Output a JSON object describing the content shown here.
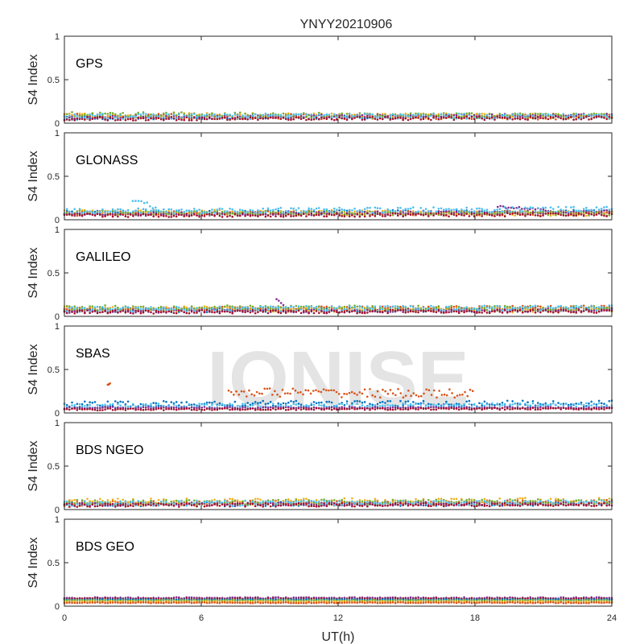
{
  "title": "YNYY20210906",
  "watermark": "IONISE",
  "chart_data": [
    {
      "type": "scatter",
      "panel_label": "GPS",
      "ylabel": "S4 Index",
      "xlim": [
        0,
        24
      ],
      "ylim": [
        0,
        1
      ],
      "yticks": [
        {
          "value": 0,
          "label": "0"
        },
        {
          "value": 0.5,
          "label": "0.5"
        },
        {
          "value": 1,
          "label": "1"
        }
      ],
      "series": [
        {
          "color": "#0072BD",
          "segments": [
            {
              "x": [
                0,
                24
              ],
              "y": [
                0.06,
                0.08
              ],
              "noise": 0.02
            }
          ]
        },
        {
          "color": "#D95319",
          "segments": [
            {
              "x": [
                0,
                24
              ],
              "y": [
                0.08,
                0.07
              ],
              "noise": 0.03
            }
          ]
        },
        {
          "color": "#EDB120",
          "segments": [
            {
              "x": [
                0,
                24
              ],
              "y": [
                0.09,
                0.08
              ],
              "noise": 0.03
            }
          ]
        },
        {
          "color": "#7E2F8E",
          "segments": [
            {
              "x": [
                0,
                24
              ],
              "y": [
                0.07,
                0.09
              ],
              "noise": 0.02
            }
          ]
        },
        {
          "color": "#77AC30",
          "segments": [
            {
              "x": [
                0,
                24
              ],
              "y": [
                0.1,
                0.08
              ],
              "noise": 0.03
            }
          ]
        },
        {
          "color": "#4DBEEE",
          "segments": [
            {
              "x": [
                0,
                24
              ],
              "y": [
                0.08,
                0.08
              ],
              "noise": 0.03
            }
          ]
        },
        {
          "color": "#A2142F",
          "segments": [
            {
              "x": [
                0,
                24
              ],
              "y": [
                0.05,
                0.06
              ],
              "noise": 0.02
            }
          ]
        }
      ]
    },
    {
      "type": "scatter",
      "panel_label": "GLONASS",
      "ylabel": "S4 Index",
      "xlim": [
        0,
        24
      ],
      "ylim": [
        0,
        1
      ],
      "yticks": [
        {
          "value": 0,
          "label": "0"
        },
        {
          "value": 0.5,
          "label": "0.5"
        },
        {
          "value": 1,
          "label": "1"
        }
      ],
      "series": [
        {
          "color": "#0072BD",
          "segments": [
            {
              "x": [
                0,
                24
              ],
              "y": [
                0.08,
                0.09
              ],
              "noise": 0.025
            }
          ]
        },
        {
          "color": "#D95319",
          "segments": [
            {
              "x": [
                0,
                24
              ],
              "y": [
                0.07,
                0.08
              ],
              "noise": 0.025
            }
          ]
        },
        {
          "color": "#EDB120",
          "segments": [
            {
              "x": [
                0,
                24
              ],
              "y": [
                0.09,
                0.07
              ],
              "noise": 0.03
            }
          ]
        },
        {
          "color": "#7E2F8E",
          "segments": [
            {
              "x": [
                0,
                24
              ],
              "y": [
                0.06,
                0.09
              ],
              "noise": 0.02
            },
            {
              "x": [
                19,
                21
              ],
              "y": [
                0.15,
                0.12
              ],
              "noise": 0.015
            }
          ]
        },
        {
          "color": "#77AC30",
          "segments": [
            {
              "x": [
                0,
                24
              ],
              "y": [
                0.08,
                0.07
              ],
              "noise": 0.025
            }
          ]
        },
        {
          "color": "#4DBEEE",
          "segments": [
            {
              "x": [
                0,
                24
              ],
              "y": [
                0.1,
                0.12
              ],
              "noise": 0.03
            },
            {
              "x": [
                3,
                4
              ],
              "y": [
                0.24,
                0.13
              ],
              "noise": 0.03
            }
          ]
        },
        {
          "color": "#A2142F",
          "segments": [
            {
              "x": [
                0,
                24
              ],
              "y": [
                0.05,
                0.06
              ],
              "noise": 0.02
            }
          ]
        }
      ]
    },
    {
      "type": "scatter",
      "panel_label": "GALILEO",
      "ylabel": "S4 Index",
      "xlim": [
        0,
        24
      ],
      "ylim": [
        0,
        1
      ],
      "yticks": [
        {
          "value": 0,
          "label": "0"
        },
        {
          "value": 0.5,
          "label": "0.5"
        },
        {
          "value": 1,
          "label": "1"
        }
      ],
      "series": [
        {
          "color": "#0072BD",
          "segments": [
            {
              "x": [
                0,
                24
              ],
              "y": [
                0.07,
                0.08
              ],
              "noise": 0.025
            }
          ]
        },
        {
          "color": "#D95319",
          "segments": [
            {
              "x": [
                0,
                24
              ],
              "y": [
                0.08,
                0.1
              ],
              "noise": 0.025
            }
          ]
        },
        {
          "color": "#EDB120",
          "segments": [
            {
              "x": [
                0,
                24
              ],
              "y": [
                0.09,
                0.07
              ],
              "noise": 0.03
            }
          ]
        },
        {
          "color": "#7E2F8E",
          "segments": [
            {
              "x": [
                0,
                24
              ],
              "y": [
                0.06,
                0.07
              ],
              "noise": 0.02
            },
            {
              "x": [
                9.3,
                9.6
              ],
              "y": [
                0.2,
                0.12
              ],
              "noise": 0.02
            }
          ]
        },
        {
          "color": "#77AC30",
          "segments": [
            {
              "x": [
                0,
                24
              ],
              "y": [
                0.1,
                0.09
              ],
              "noise": 0.03
            }
          ]
        },
        {
          "color": "#4DBEEE",
          "segments": [
            {
              "x": [
                0,
                24
              ],
              "y": [
                0.08,
                0.1
              ],
              "noise": 0.03
            }
          ]
        },
        {
          "color": "#A2142F",
          "segments": [
            {
              "x": [
                0,
                24
              ],
              "y": [
                0.05,
                0.06
              ],
              "noise": 0.02
            }
          ]
        }
      ]
    },
    {
      "type": "scatter",
      "panel_label": "SBAS",
      "ylabel": "S4 Index",
      "xlim": [
        0,
        24
      ],
      "ylim": [
        0,
        1
      ],
      "yticks": [
        {
          "value": 0,
          "label": "0"
        },
        {
          "value": 0.5,
          "label": "0.5"
        },
        {
          "value": 1,
          "label": "1"
        }
      ],
      "series": [
        {
          "color": "#0072BD",
          "segments": [
            {
              "x": [
                0,
                24
              ],
              "y": [
                0.1,
                0.11
              ],
              "noise": 0.035
            }
          ]
        },
        {
          "color": "#D95319",
          "segments": [
            {
              "x": [
                7.2,
                17.9
              ],
              "y": [
                0.24,
                0.22
              ],
              "noise": 0.05
            },
            {
              "x": [
                1.9,
                2.0
              ],
              "y": [
                0.32,
                0.32
              ],
              "noise": 0.02
            }
          ]
        },
        {
          "color": "#4DBEEE",
          "segments": [
            {
              "x": [
                0,
                24
              ],
              "y": [
                0.08,
                0.09
              ],
              "noise": 0.025
            }
          ]
        },
        {
          "color": "#7E2F8E",
          "segments": [
            {
              "x": [
                0,
                24
              ],
              "y": [
                0.06,
                0.06
              ],
              "noise": 0.01
            }
          ]
        },
        {
          "color": "#A2142F",
          "segments": [
            {
              "x": [
                0,
                24
              ],
              "y": [
                0.04,
                0.05
              ],
              "noise": 0.01
            }
          ]
        }
      ]
    },
    {
      "type": "scatter",
      "panel_label": "BDS NGEO",
      "ylabel": "S4 Index",
      "xlim": [
        0,
        24
      ],
      "ylim": [
        0,
        1
      ],
      "yticks": [
        {
          "value": 0,
          "label": "0"
        },
        {
          "value": 0.5,
          "label": "0.5"
        },
        {
          "value": 1,
          "label": "1"
        }
      ],
      "series": [
        {
          "color": "#0072BD",
          "segments": [
            {
              "x": [
                0,
                24
              ],
              "y": [
                0.06,
                0.07
              ],
              "noise": 0.025
            }
          ]
        },
        {
          "color": "#D95319",
          "segments": [
            {
              "x": [
                0,
                24
              ],
              "y": [
                0.07,
                0.08
              ],
              "noise": 0.03
            }
          ]
        },
        {
          "color": "#EDB120",
          "segments": [
            {
              "x": [
                0,
                24
              ],
              "y": [
                0.09,
                0.1
              ],
              "noise": 0.035
            }
          ]
        },
        {
          "color": "#7E2F8E",
          "segments": [
            {
              "x": [
                0,
                24
              ],
              "y": [
                0.06,
                0.07
              ],
              "noise": 0.02
            }
          ]
        },
        {
          "color": "#77AC30",
          "segments": [
            {
              "x": [
                0,
                24
              ],
              "y": [
                0.08,
                0.09
              ],
              "noise": 0.03
            }
          ]
        },
        {
          "color": "#4DBEEE",
          "segments": [
            {
              "x": [
                0,
                24
              ],
              "y": [
                0.07,
                0.08
              ],
              "noise": 0.03
            }
          ]
        },
        {
          "color": "#A2142F",
          "segments": [
            {
              "x": [
                0,
                24
              ],
              "y": [
                0.05,
                0.06
              ],
              "noise": 0.02
            }
          ]
        }
      ]
    },
    {
      "type": "scatter",
      "panel_label": "BDS GEO",
      "ylabel": "S4 Index",
      "xlim": [
        0,
        24
      ],
      "ylim": [
        0,
        1
      ],
      "yticks": [
        {
          "value": 0,
          "label": "0"
        },
        {
          "value": 0.5,
          "label": "0.5"
        },
        {
          "value": 1,
          "label": "1"
        }
      ],
      "xticks": [
        {
          "value": 0,
          "label": "0"
        },
        {
          "value": 6,
          "label": "6"
        },
        {
          "value": 12,
          "label": "12"
        },
        {
          "value": 18,
          "label": "18"
        },
        {
          "value": 24,
          "label": "24"
        }
      ],
      "xlabel": "UT(h)",
      "series": [
        {
          "color": "#7E2F8E",
          "segments": [
            {
              "x": [
                0,
                24
              ],
              "y": [
                0.095,
                0.095
              ],
              "noise": 0.008
            }
          ]
        },
        {
          "color": "#A2142F",
          "segments": [
            {
              "x": [
                0,
                24
              ],
              "y": [
                0.085,
                0.085
              ],
              "noise": 0.008
            }
          ]
        },
        {
          "color": "#0072BD",
          "segments": [
            {
              "x": [
                0,
                24
              ],
              "y": [
                0.075,
                0.075
              ],
              "noise": 0.006
            }
          ]
        },
        {
          "color": "#77AC30",
          "segments": [
            {
              "x": [
                0,
                24
              ],
              "y": [
                0.065,
                0.065
              ],
              "noise": 0.006
            }
          ]
        },
        {
          "color": "#EDB120",
          "segments": [
            {
              "x": [
                0,
                24
              ],
              "y": [
                0.05,
                0.05
              ],
              "noise": 0.006
            }
          ]
        },
        {
          "color": "#D95319",
          "segments": [
            {
              "x": [
                0,
                24
              ],
              "y": [
                0.04,
                0.04
              ],
              "noise": 0.005
            }
          ]
        }
      ]
    }
  ]
}
